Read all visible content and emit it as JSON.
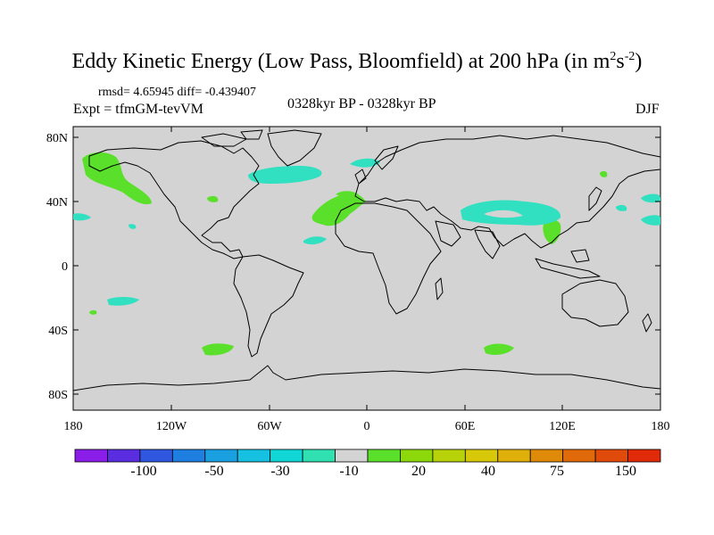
{
  "title": {
    "text": "Eddy Kinetic Energy (Low Pass, Bloomfield) at 200 hPa (in m",
    "sup1": "2",
    "mid": "s",
    "sup2": "-2",
    "end": ")"
  },
  "stats": "rmsd= 4.65945 diff= -0.439407",
  "expt": "Expt = tfmGM-tevVM",
  "period": "0328kyr BP - 0328kyr BP",
  "season": "DJF",
  "lat_labels": [
    "80N",
    "40N",
    "0",
    "40S",
    "80S"
  ],
  "lon_labels": [
    "180",
    "120W",
    "60W",
    "0",
    "60E",
    "120E",
    "180"
  ],
  "colorbar": {
    "colors": [
      "#8a1ee8",
      "#5a2ee0",
      "#2f57e0",
      "#1f7fe0",
      "#1aa0e0",
      "#15c0e0",
      "#10d6d6",
      "#30e0b0",
      "#d3d3d3",
      "#5ae02a",
      "#8cd80a",
      "#b8d20a",
      "#d8c80a",
      "#e0b00a",
      "#e08a0a",
      "#e06a0a",
      "#e04a0a",
      "#e02a0a"
    ],
    "labels": [
      "-100",
      "-50",
      "-30",
      "-10",
      "20",
      "40",
      "75",
      "150"
    ]
  },
  "fields": {
    "positive_color": "#5ae02a",
    "negative_color": "#30e0c0",
    "land_fill": "#d3d3d3"
  }
}
